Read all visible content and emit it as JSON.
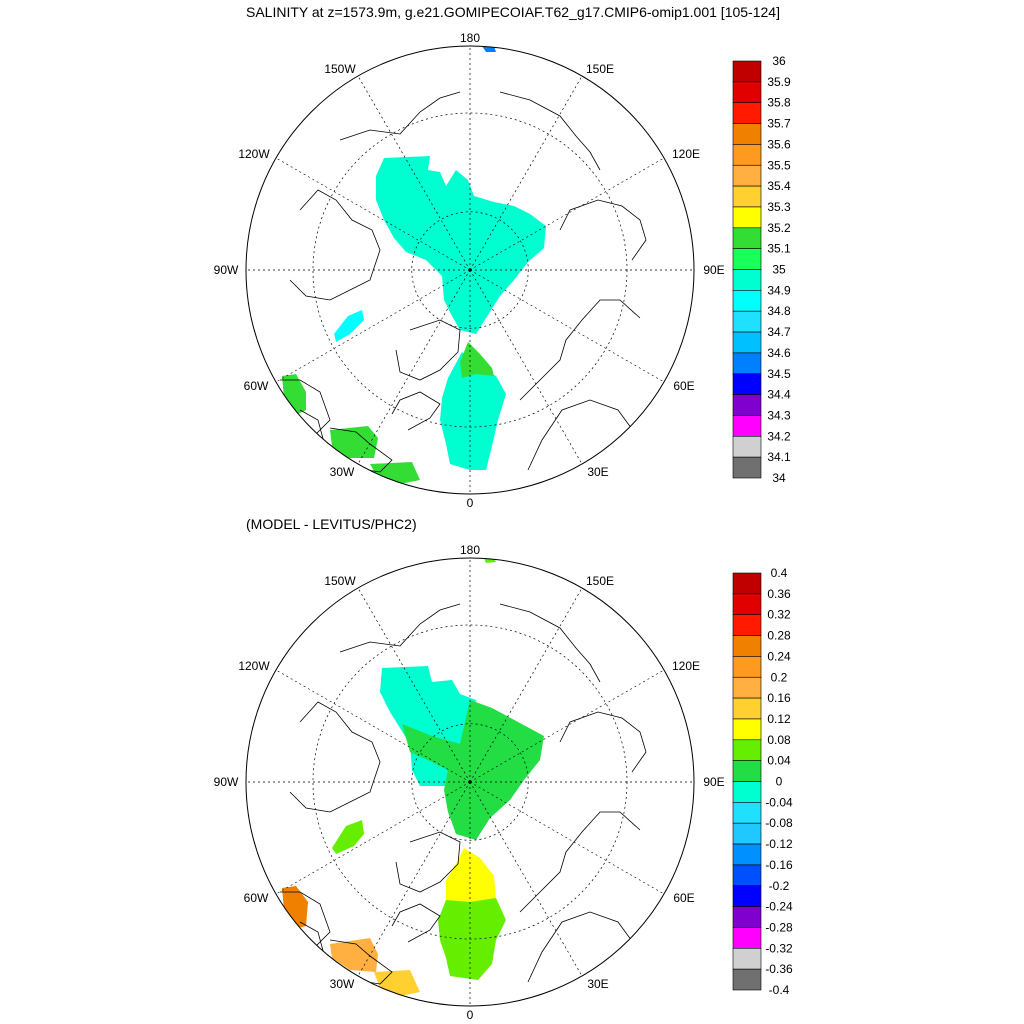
{
  "panels": [
    {
      "title": "SALINITY at z=1573.9m, g.e21.GOMIPECOIAF.T62_g17.CMIP6-omip1.001 [105-124]",
      "longitude_labels": [
        "180",
        "150E",
        "120E",
        "90E",
        "60E",
        "30E",
        "0",
        "30W",
        "60W",
        "90W",
        "120W",
        "150W"
      ],
      "colorbar": {
        "labels": [
          "36",
          "35.9",
          "35.8",
          "35.7",
          "35.6",
          "35.5",
          "35.4",
          "35.3",
          "35.2",
          "35.1",
          "35",
          "34.9",
          "34.8",
          "34.7",
          "34.6",
          "34.5",
          "34.4",
          "34.3",
          "34.2",
          "34.1",
          "34"
        ],
        "colors": [
          "#c00000",
          "#e00000",
          "#ff1a00",
          "#f08000",
          "#ff9a20",
          "#ffb040",
          "#ffd030",
          "#ffff00",
          "#33dd33",
          "#1aff5a",
          "#00ffd0",
          "#00ffff",
          "#20e0ff",
          "#00c0ff",
          "#0080ff",
          "#0000ff",
          "#8000d0",
          "#ff00ff",
          "#d0d0d0",
          "#707070"
        ]
      },
      "regions": [
        {
          "name": "central-arctic",
          "color": "#00ffd0"
        },
        {
          "name": "greenland-norwegian-sea",
          "color": "#00ffd0"
        },
        {
          "name": "fram-strait",
          "color": "#33dd33"
        },
        {
          "name": "labrador-sea",
          "color": "#33dd33"
        },
        {
          "name": "north-atlantic-east",
          "color": "#33dd33"
        },
        {
          "name": "north-atlantic-south",
          "color": "#33dd33"
        },
        {
          "name": "baffin-bay",
          "color": "#00ffff"
        },
        {
          "name": "bering-edge",
          "color": "#0080ff"
        }
      ]
    },
    {
      "title": "(MODEL - LEVITUS/PHC2)",
      "longitude_labels": [
        "180",
        "150E",
        "120E",
        "90E",
        "60E",
        "30E",
        "0",
        "30W",
        "60W",
        "90W",
        "120W",
        "150W"
      ],
      "colorbar": {
        "labels": [
          "0.4",
          "0.36",
          "0.32",
          "0.28",
          "0.24",
          "0.2",
          "0.16",
          "0.12",
          "0.08",
          "0.04",
          "0",
          "-0.04",
          "-0.08",
          "-0.12",
          "-0.16",
          "-0.2",
          "-0.24",
          "-0.28",
          "-0.32",
          "-0.36",
          "-0.4"
        ],
        "colors": [
          "#c00000",
          "#e00000",
          "#ff1a00",
          "#f08000",
          "#ff9a20",
          "#ffb040",
          "#ffd030",
          "#ffff00",
          "#66ee00",
          "#22dd44",
          "#00ffd0",
          "#20e0ff",
          "#20c8ff",
          "#0090ff",
          "#0050ff",
          "#0000ff",
          "#8000d0",
          "#ff00ff",
          "#d0d0d0",
          "#707070"
        ]
      },
      "regions": [
        {
          "name": "beaufort-negative",
          "color": "#00ffd0"
        },
        {
          "name": "central-arctic-positive",
          "color": "#22dd44"
        },
        {
          "name": "fram-strait-yellow",
          "color": "#ffff00"
        },
        {
          "name": "norwegian-sea-green",
          "color": "#66ee00"
        },
        {
          "name": "baffin-bay-green",
          "color": "#66ee00"
        },
        {
          "name": "labrador-sea-orange",
          "color": "#f08000"
        },
        {
          "name": "north-atlantic-orange",
          "color": "#ffb040"
        },
        {
          "name": "north-atlantic-yellow",
          "color": "#ffd030"
        },
        {
          "name": "bering-edge",
          "color": "#66ee00"
        }
      ]
    }
  ]
}
